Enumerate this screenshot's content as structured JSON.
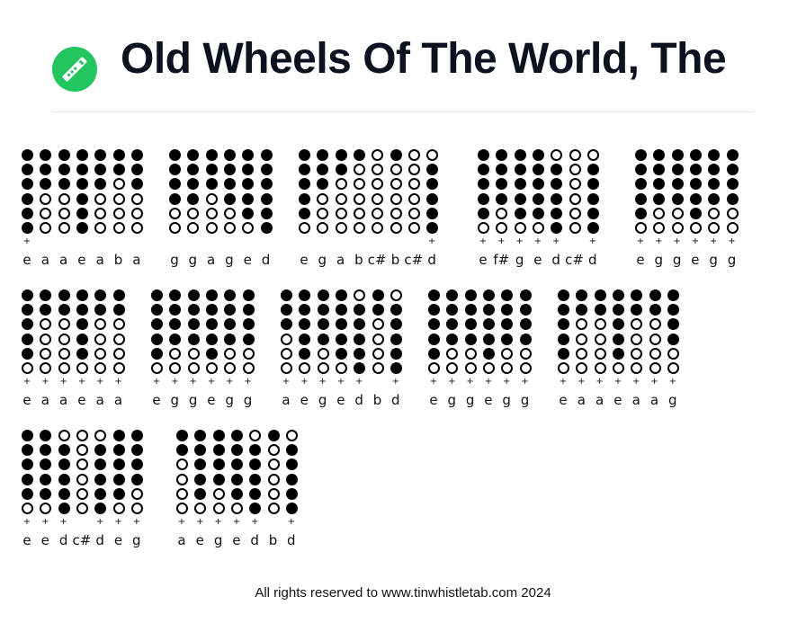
{
  "header": {
    "title": "Old Wheels Of The World, The",
    "logo_icon": "tin-whistle-icon",
    "logo_color": "#22c55e"
  },
  "footer": {
    "text": "All rights reserved to www.tinwhistletab.com 2024"
  },
  "rows": [
    [
      {
        "notes": [
          {
            "name": "e",
            "holes": "111111",
            "plus": true
          },
          {
            "name": "a",
            "holes": "111000",
            "plus": false
          },
          {
            "name": "a",
            "holes": "111000",
            "plus": false
          },
          {
            "name": "e",
            "holes": "111111",
            "plus": false
          },
          {
            "name": "a",
            "holes": "111000",
            "plus": false
          },
          {
            "name": "b",
            "holes": "110000",
            "plus": false
          },
          {
            "name": "a",
            "holes": "111000",
            "plus": false
          }
        ]
      },
      {
        "notes": [
          {
            "name": "g",
            "holes": "111100",
            "plus": false
          },
          {
            "name": "g",
            "holes": "111100",
            "plus": false
          },
          {
            "name": "a",
            "holes": "111000",
            "plus": false
          },
          {
            "name": "g",
            "holes": "111100",
            "plus": false
          },
          {
            "name": "e",
            "holes": "111110",
            "plus": false
          },
          {
            "name": "d",
            "holes": "111111",
            "plus": false
          }
        ]
      },
      {
        "notes": [
          {
            "name": "e",
            "holes": "111110",
            "plus": false
          },
          {
            "name": "g",
            "holes": "111000",
            "plus": false
          },
          {
            "name": "a",
            "holes": "110000",
            "plus": false
          },
          {
            "name": "b",
            "holes": "100000",
            "plus": false
          },
          {
            "name": "c#",
            "holes": "000000",
            "plus": false
          },
          {
            "name": "b",
            "holes": "100000",
            "plus": false
          },
          {
            "name": "c#",
            "holes": "000000",
            "plus": false
          },
          {
            "name": "d",
            "holes": "011111",
            "plus": true
          }
        ]
      },
      {
        "notes": [
          {
            "name": "e",
            "holes": "111110",
            "plus": true
          },
          {
            "name": "f#",
            "holes": "111100",
            "plus": true
          },
          {
            "name": "g",
            "holes": "111110",
            "plus": true
          },
          {
            "name": "e",
            "holes": "111110",
            "plus": true
          },
          {
            "name": "d",
            "holes": "011111",
            "plus": true
          },
          {
            "name": "c#",
            "holes": "000000",
            "plus": false
          },
          {
            "name": "d",
            "holes": "011111",
            "plus": true
          }
        ]
      },
      {
        "notes": [
          {
            "name": "e",
            "holes": "111110",
            "plus": true
          },
          {
            "name": "g",
            "holes": "111100",
            "plus": true
          },
          {
            "name": "g",
            "holes": "111100",
            "plus": true
          },
          {
            "name": "e",
            "holes": "111110",
            "plus": true
          },
          {
            "name": "g",
            "holes": "111100",
            "plus": true
          },
          {
            "name": "g",
            "holes": "111100",
            "plus": true
          }
        ]
      }
    ],
    [
      {
        "notes": [
          {
            "name": "e",
            "holes": "111110",
            "plus": true
          },
          {
            "name": "a",
            "holes": "110000",
            "plus": true
          },
          {
            "name": "a",
            "holes": "110000",
            "plus": true
          },
          {
            "name": "e",
            "holes": "111110",
            "plus": true
          },
          {
            "name": "a",
            "holes": "110000",
            "plus": true
          },
          {
            "name": "a",
            "holes": "110000",
            "plus": true
          }
        ]
      },
      {
        "notes": [
          {
            "name": "e",
            "holes": "111110",
            "plus": true
          },
          {
            "name": "g",
            "holes": "111100",
            "plus": true
          },
          {
            "name": "g",
            "holes": "111100",
            "plus": true
          },
          {
            "name": "e",
            "holes": "111110",
            "plus": true
          },
          {
            "name": "g",
            "holes": "111100",
            "plus": true
          },
          {
            "name": "g",
            "holes": "111100",
            "plus": true
          }
        ]
      },
      {
        "notes": [
          {
            "name": "a",
            "holes": "111000",
            "plus": true
          },
          {
            "name": "e",
            "holes": "111110",
            "plus": true
          },
          {
            "name": "g",
            "holes": "111100",
            "plus": true
          },
          {
            "name": "e",
            "holes": "111110",
            "plus": true
          },
          {
            "name": "d",
            "holes": "011111",
            "plus": true
          },
          {
            "name": "b",
            "holes": "110000",
            "plus": false
          },
          {
            "name": "d",
            "holes": "011111",
            "plus": true
          }
        ]
      },
      {
        "notes": [
          {
            "name": "e",
            "holes": "111110",
            "plus": true
          },
          {
            "name": "g",
            "holes": "111100",
            "plus": true
          },
          {
            "name": "g",
            "holes": "111100",
            "plus": true
          },
          {
            "name": "e",
            "holes": "111110",
            "plus": true
          },
          {
            "name": "g",
            "holes": "111100",
            "plus": true
          },
          {
            "name": "g",
            "holes": "111100",
            "plus": true
          }
        ]
      },
      {
        "notes": [
          {
            "name": "e",
            "holes": "111110",
            "plus": true
          },
          {
            "name": "a",
            "holes": "110000",
            "plus": true
          },
          {
            "name": "a",
            "holes": "110000",
            "plus": true
          },
          {
            "name": "e",
            "holes": "111110",
            "plus": true
          },
          {
            "name": "a",
            "holes": "110000",
            "plus": true
          },
          {
            "name": "a",
            "holes": "110000",
            "plus": true
          },
          {
            "name": "g",
            "holes": "111100",
            "plus": true
          }
        ]
      }
    ],
    [
      {
        "notes": [
          {
            "name": "e",
            "holes": "111110",
            "plus": true
          },
          {
            "name": "e",
            "holes": "111110",
            "plus": true
          },
          {
            "name": "d",
            "holes": "011111",
            "plus": true
          },
          {
            "name": "c#",
            "holes": "000000",
            "plus": false
          },
          {
            "name": "d",
            "holes": "011111",
            "plus": true
          },
          {
            "name": "e",
            "holes": "111110",
            "plus": true
          },
          {
            "name": "g",
            "holes": "111100",
            "plus": true
          }
        ]
      },
      {
        "notes": [
          {
            "name": "a",
            "holes": "110000",
            "plus": true
          },
          {
            "name": "e",
            "holes": "111110",
            "plus": true
          },
          {
            "name": "g",
            "holes": "111100",
            "plus": true
          },
          {
            "name": "e",
            "holes": "111110",
            "plus": true
          },
          {
            "name": "d",
            "holes": "011111",
            "plus": true
          },
          {
            "name": "b",
            "holes": "100000",
            "plus": false
          },
          {
            "name": "d",
            "holes": "011111",
            "plus": true
          }
        ]
      }
    ]
  ]
}
